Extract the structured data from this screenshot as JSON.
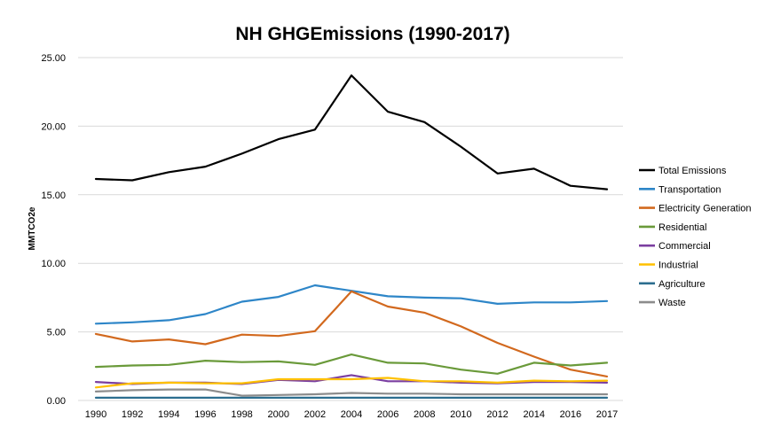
{
  "chart_data": {
    "type": "line",
    "title": "NH GHGEmissions (1990-2017)",
    "xlabel": "",
    "ylabel": "MMTCO2e",
    "x": [
      "1990",
      "1992",
      "1994",
      "1996",
      "1998",
      "2000",
      "2002",
      "2004",
      "2006",
      "2008",
      "2010",
      "2012",
      "2014",
      "2016",
      "2017"
    ],
    "y_ticks": [
      "0.00",
      "5.00",
      "10.00",
      "15.00",
      "20.00",
      "25.00"
    ],
    "ylim": [
      0,
      25
    ],
    "grid": true,
    "legend_position": "right",
    "series": [
      {
        "name": "Total Emissions",
        "color": "#000000",
        "values": [
          16.15,
          16.05,
          16.65,
          17.05,
          18.0,
          19.05,
          19.75,
          23.7,
          21.05,
          20.3,
          18.5,
          16.55,
          16.9,
          15.65,
          15.4
        ]
      },
      {
        "name": "Transportation",
        "color": "#2e86c8",
        "values": [
          5.6,
          5.7,
          5.85,
          6.3,
          7.2,
          7.55,
          8.4,
          8.0,
          7.6,
          7.5,
          7.45,
          7.05,
          7.15,
          7.15,
          7.25
        ]
      },
      {
        "name": "Electricity Generation",
        "color": "#d2691e",
        "values": [
          4.85,
          4.3,
          4.45,
          4.1,
          4.8,
          4.7,
          5.05,
          7.95,
          6.85,
          6.4,
          5.4,
          4.2,
          3.2,
          2.25,
          1.75
        ]
      },
      {
        "name": "Residential",
        "color": "#6a9a3a",
        "values": [
          2.45,
          2.55,
          2.6,
          2.9,
          2.8,
          2.85,
          2.6,
          3.35,
          2.75,
          2.7,
          2.25,
          1.95,
          2.75,
          2.55,
          2.75
        ]
      },
      {
        "name": "Commercial",
        "color": "#7b3fa0",
        "values": [
          1.35,
          1.2,
          1.3,
          1.3,
          1.2,
          1.5,
          1.4,
          1.85,
          1.4,
          1.4,
          1.3,
          1.25,
          1.35,
          1.35,
          1.3
        ]
      },
      {
        "name": "Industrial",
        "color": "#ffc000",
        "values": [
          0.95,
          1.25,
          1.3,
          1.25,
          1.25,
          1.55,
          1.55,
          1.55,
          1.65,
          1.4,
          1.4,
          1.3,
          1.45,
          1.4,
          1.45
        ]
      },
      {
        "name": "Agriculture",
        "color": "#2c6e8f",
        "values": [
          0.2,
          0.2,
          0.2,
          0.2,
          0.2,
          0.2,
          0.2,
          0.2,
          0.2,
          0.2,
          0.2,
          0.2,
          0.2,
          0.2,
          0.2
        ]
      },
      {
        "name": "Waste",
        "color": "#8c8c8c",
        "values": [
          0.65,
          0.75,
          0.8,
          0.8,
          0.35,
          0.4,
          0.45,
          0.55,
          0.5,
          0.5,
          0.45,
          0.45,
          0.45,
          0.45,
          0.45
        ]
      }
    ]
  }
}
